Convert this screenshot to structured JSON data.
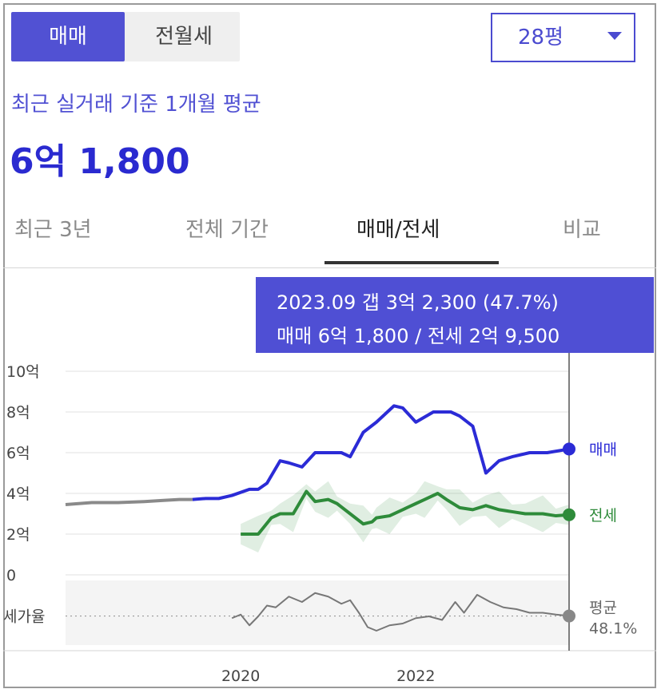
{
  "toggle": {
    "options": [
      "매매",
      "전월세"
    ],
    "active": "매매"
  },
  "area_select": {
    "value": "28평"
  },
  "summary": {
    "subtitle": "최근 실거래 기준 1개월 평균",
    "price": "6억 1,800"
  },
  "tabs": [
    "최근 3년",
    "전체 기간",
    "매매/전세",
    "비교"
  ],
  "active_tab": "매매/전세",
  "tooltip": {
    "line1": "2023.09  갭 3억 2,300 (47.7%)",
    "line2": "매매 6억 1,800 / 전세 2억 9,500"
  },
  "colors": {
    "sale": "#2b2bd6",
    "jeonse": "#2e8b3a",
    "ratio": "#777777",
    "accent": "#5151d3",
    "history": "#8a8a8a"
  },
  "chart_data": {
    "type": "line",
    "ylabel": "",
    "y_ticks": [
      "10억",
      "8억",
      "6억",
      "4억",
      "2억",
      "0"
    ],
    "y_tick_values": [
      10,
      8,
      6,
      4,
      2,
      0
    ],
    "ylim": [
      0,
      10
    ],
    "ratio_axis_label": "세가율",
    "x_tick_labels": [
      "2020",
      "2022"
    ],
    "x_tick_values": [
      2020.0,
      2022.0
    ],
    "xlim": [
      2018.0,
      2023.75
    ],
    "series": [
      {
        "name": "매매",
        "end_label": "매매",
        "x": [
          2018.0,
          2018.3,
          2018.6,
          2018.9,
          2019.1,
          2019.3,
          2019.45,
          2019.6,
          2019.75,
          2019.9,
          2020.1,
          2020.2,
          2020.3,
          2020.45,
          2020.55,
          2020.7,
          2020.85,
          2021.0,
          2021.15,
          2021.25,
          2021.4,
          2021.55,
          2021.75,
          2021.85,
          2022.0,
          2022.2,
          2022.4,
          2022.5,
          2022.65,
          2022.8,
          2022.95,
          2023.1,
          2023.3,
          2023.5,
          2023.75
        ],
        "y": [
          3.45,
          3.55,
          3.55,
          3.6,
          3.65,
          3.7,
          3.7,
          3.75,
          3.75,
          3.9,
          4.2,
          4.2,
          4.5,
          5.6,
          5.5,
          5.3,
          6.0,
          6.0,
          6.0,
          5.8,
          7.0,
          7.5,
          8.3,
          8.2,
          7.5,
          8.0,
          8.0,
          7.8,
          7.3,
          5.0,
          5.6,
          5.8,
          6.0,
          6.0,
          6.18
        ]
      },
      {
        "name": "전세",
        "end_label": "전세",
        "x": [
          2020.0,
          2020.2,
          2020.35,
          2020.45,
          2020.6,
          2020.75,
          2020.85,
          2021.0,
          2021.1,
          2021.25,
          2021.4,
          2021.5,
          2021.55,
          2021.7,
          2021.85,
          2022.0,
          2022.1,
          2022.25,
          2022.35,
          2022.5,
          2022.65,
          2022.8,
          2022.95,
          2023.1,
          2023.25,
          2023.45,
          2023.6,
          2023.75
        ],
        "y": [
          2.0,
          2.0,
          2.8,
          3.0,
          3.0,
          4.1,
          3.6,
          3.7,
          3.5,
          3.0,
          2.5,
          2.6,
          2.8,
          2.9,
          3.2,
          3.5,
          3.7,
          4.0,
          3.7,
          3.3,
          3.2,
          3.4,
          3.2,
          3.1,
          3.0,
          3.0,
          2.9,
          2.95
        ]
      },
      {
        "name": "평균",
        "end_label": "평균",
        "end_value_label": "48.1%",
        "x": [
          2019.9,
          2020.0,
          2020.1,
          2020.2,
          2020.3,
          2020.4,
          2020.55,
          2020.7,
          2020.85,
          2021.0,
          2021.15,
          2021.25,
          2021.35,
          2021.45,
          2021.55,
          2021.7,
          2021.85,
          2022.0,
          2022.15,
          2022.3,
          2022.45,
          2022.55,
          2022.7,
          2022.85,
          2023.0,
          2023.15,
          2023.3,
          2023.45,
          2023.6,
          2023.75
        ],
        "y": [
          47.5,
          48.5,
          45.5,
          48.0,
          51.0,
          50.5,
          53.5,
          52.0,
          54.5,
          53.5,
          51.5,
          52.5,
          49.0,
          45.0,
          44.0,
          45.5,
          46.0,
          47.5,
          48.0,
          47.0,
          52.0,
          49.0,
          54.0,
          52.0,
          50.5,
          50.0,
          49.0,
          49.0,
          48.5,
          48.1
        ]
      }
    ],
    "ratio_reference": 48.1,
    "ratio_ylim": [
      40,
      58
    ],
    "grid": true,
    "cursor_x": 2023.75
  }
}
